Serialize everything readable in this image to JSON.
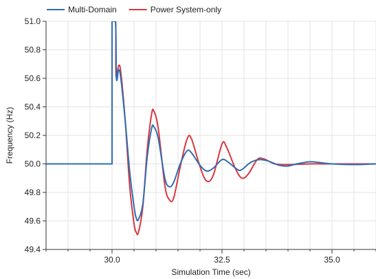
{
  "chart_data": {
    "type": "line",
    "title": "",
    "xlabel": "Simulation Time (sec)",
    "ylabel": "Frequency (Hz)",
    "xlim": [
      28.5,
      36.0
    ],
    "ylim": [
      49.4,
      51.0
    ],
    "x_ticks": [
      {
        "value": 30.0,
        "label": "30.0"
      },
      {
        "value": 32.5,
        "label": "32.5"
      },
      {
        "value": 35.0,
        "label": "35.0"
      }
    ],
    "y_ticks": [
      {
        "value": 49.4,
        "label": "49.4"
      },
      {
        "value": 49.6,
        "label": "49.6"
      },
      {
        "value": 49.8,
        "label": "49.8"
      },
      {
        "value": 50.0,
        "label": "50.0"
      },
      {
        "value": 50.2,
        "label": "50.2"
      },
      {
        "value": 50.4,
        "label": "50.4"
      },
      {
        "value": 50.6,
        "label": "50.6"
      },
      {
        "value": 50.8,
        "label": "50.8"
      },
      {
        "value": 51.0,
        "label": "51.0"
      }
    ],
    "grid": true,
    "legend_position": "top-left",
    "series": [
      {
        "name": "Multi-Domain",
        "color": "#2f6db3",
        "points": [
          [
            28.5,
            50.0
          ],
          [
            30.0,
            50.0
          ],
          [
            30.0,
            51.0
          ],
          [
            30.08,
            51.0
          ],
          [
            30.1,
            50.6
          ],
          [
            30.15,
            50.66
          ],
          [
            30.2,
            50.6
          ],
          [
            30.3,
            50.3
          ],
          [
            30.4,
            49.95
          ],
          [
            30.5,
            49.7
          ],
          [
            30.55,
            49.62
          ],
          [
            30.6,
            49.61
          ],
          [
            30.7,
            49.72
          ],
          [
            30.8,
            50.05
          ],
          [
            30.9,
            50.25
          ],
          [
            30.95,
            50.26
          ],
          [
            31.05,
            50.18
          ],
          [
            31.2,
            49.9
          ],
          [
            31.3,
            49.84
          ],
          [
            31.4,
            49.87
          ],
          [
            31.55,
            50.0
          ],
          [
            31.7,
            50.09
          ],
          [
            31.8,
            50.08
          ],
          [
            32.0,
            49.99
          ],
          [
            32.15,
            49.95
          ],
          [
            32.3,
            49.97
          ],
          [
            32.5,
            50.03
          ],
          [
            32.65,
            50.01
          ],
          [
            32.85,
            49.96
          ],
          [
            32.95,
            49.96
          ],
          [
            33.15,
            50.01
          ],
          [
            33.35,
            50.03
          ],
          [
            33.55,
            50.02
          ],
          [
            33.8,
            49.99
          ],
          [
            34.0,
            49.985
          ],
          [
            34.2,
            50.0
          ],
          [
            34.5,
            50.015
          ],
          [
            34.7,
            50.01
          ],
          [
            35.0,
            50.0
          ],
          [
            35.5,
            49.995
          ],
          [
            36.0,
            50.0
          ]
        ]
      },
      {
        "name": "Power System-only",
        "color": "#d9363e",
        "points": [
          [
            28.5,
            50.0
          ],
          [
            30.0,
            50.0
          ],
          [
            30.0,
            51.0
          ],
          [
            30.08,
            51.0
          ],
          [
            30.09,
            50.62
          ],
          [
            30.15,
            50.69
          ],
          [
            30.2,
            50.64
          ],
          [
            30.3,
            50.3
          ],
          [
            30.4,
            49.85
          ],
          [
            30.5,
            49.58
          ],
          [
            30.55,
            49.52
          ],
          [
            30.6,
            49.52
          ],
          [
            30.7,
            49.7
          ],
          [
            30.8,
            50.1
          ],
          [
            30.9,
            50.35
          ],
          [
            30.95,
            50.37
          ],
          [
            31.05,
            50.25
          ],
          [
            31.2,
            49.85
          ],
          [
            31.3,
            49.75
          ],
          [
            31.4,
            49.76
          ],
          [
            31.55,
            49.98
          ],
          [
            31.7,
            50.17
          ],
          [
            31.8,
            50.18
          ],
          [
            32.0,
            49.98
          ],
          [
            32.15,
            49.88
          ],
          [
            32.3,
            49.92
          ],
          [
            32.5,
            50.14
          ],
          [
            32.6,
            50.12
          ],
          [
            32.8,
            49.97
          ],
          [
            32.95,
            49.9
          ],
          [
            33.1,
            49.93
          ],
          [
            33.3,
            50.03
          ],
          [
            33.45,
            50.035
          ],
          [
            33.7,
            50.0
          ],
          [
            34.0,
            49.995
          ],
          [
            34.5,
            50.0
          ],
          [
            35.0,
            50.0
          ],
          [
            36.0,
            50.0
          ]
        ]
      }
    ]
  }
}
